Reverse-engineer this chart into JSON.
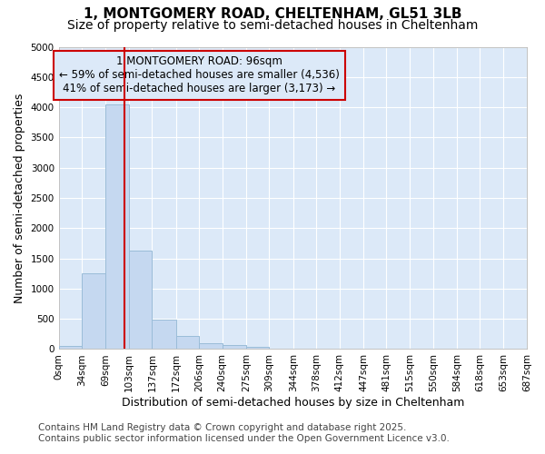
{
  "title_line1": "1, MONTGOMERY ROAD, CHELTENHAM, GL51 3LB",
  "title_line2": "Size of property relative to semi-detached houses in Cheltenham",
  "xlabel": "Distribution of semi-detached houses by size in Cheltenham",
  "ylabel": "Number of semi-detached properties",
  "annotation_title": "1 MONTGOMERY ROAD: 96sqm",
  "annotation_line1": "← 59% of semi-detached houses are smaller (4,536)",
  "annotation_line2": "41% of semi-detached houses are larger (3,173) →",
  "footer_line1": "Contains HM Land Registry data © Crown copyright and database right 2025.",
  "footer_line2": "Contains public sector information licensed under the Open Government Licence v3.0.",
  "property_size": 96,
  "bar_edges": [
    0,
    34,
    69,
    103,
    137,
    172,
    206,
    240,
    275,
    309,
    344,
    378,
    412,
    447,
    481,
    515,
    550,
    584,
    618,
    653,
    687
  ],
  "bar_heights": [
    50,
    1250,
    4050,
    1625,
    480,
    220,
    100,
    65,
    30,
    10,
    0,
    0,
    0,
    0,
    0,
    0,
    0,
    0,
    0,
    0
  ],
  "bar_color": "#c5d8f0",
  "bar_edge_color": "#9abcd8",
  "vline_color": "#cc0000",
  "vline_x": 96,
  "annotation_box_color": "#cc0000",
  "fig_background_color": "#ffffff",
  "plot_background_color": "#dce9f8",
  "grid_color": "#ffffff",
  "ylim": [
    0,
    5000
  ],
  "yticks": [
    0,
    500,
    1000,
    1500,
    2000,
    2500,
    3000,
    3500,
    4000,
    4500,
    5000
  ],
  "title_fontsize": 11,
  "subtitle_fontsize": 10,
  "tick_fontsize": 7.5,
  "label_fontsize": 9,
  "footer_fontsize": 7.5,
  "annotation_fontsize": 8.5
}
